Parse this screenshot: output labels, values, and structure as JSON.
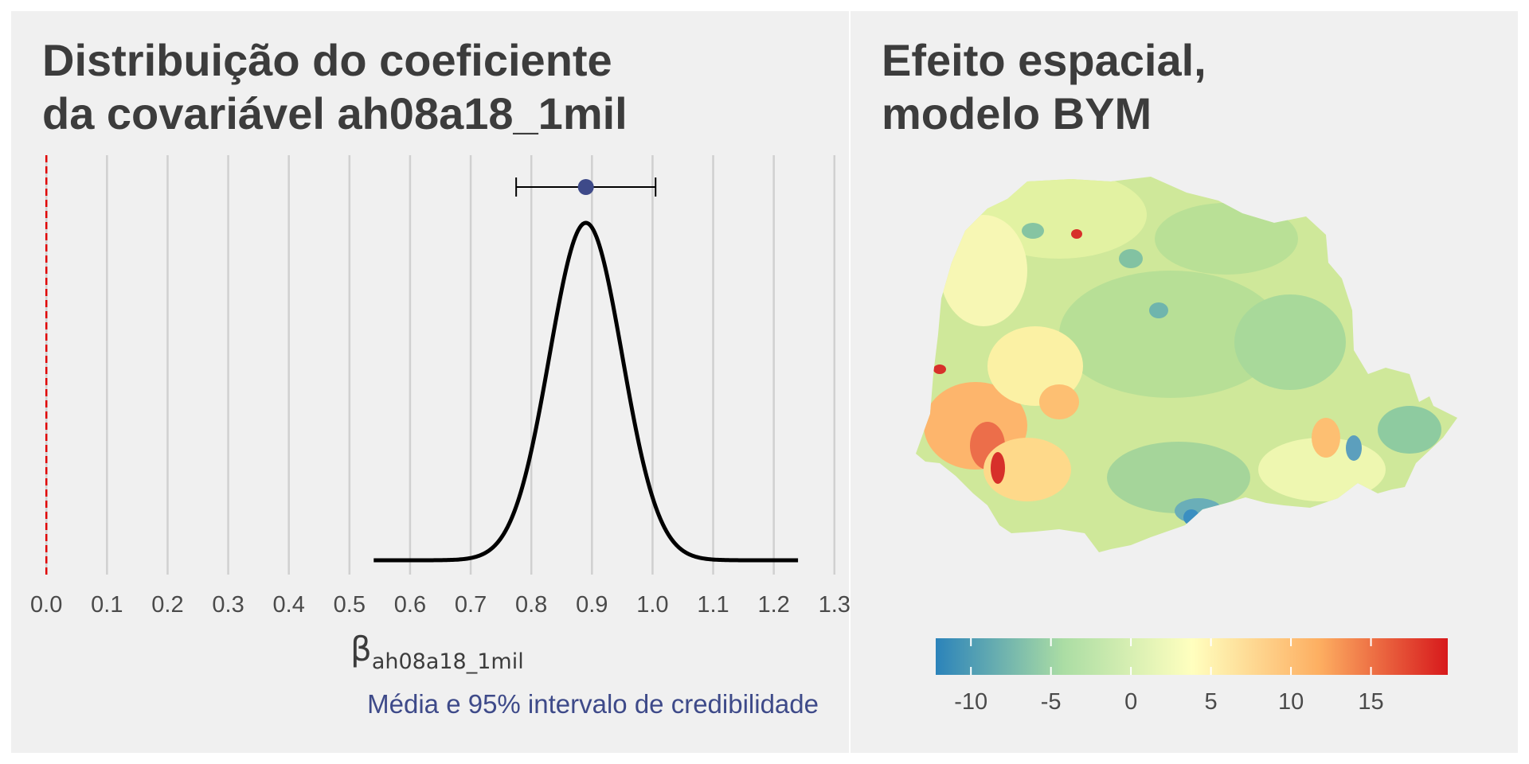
{
  "colors": {
    "panel_bg": "#f0f0f0",
    "outer_bg": "#ffffff",
    "gridline": "#d0d0d0",
    "zero_line": "#e00000",
    "density_line": "#000000",
    "mean_point": "#3e4a89",
    "caption_text": "#3e4a89",
    "title_text": "#3c3c3c"
  },
  "chart_data": [
    {
      "type": "line",
      "title_lines": [
        "Distribuição do coeficiente",
        "da covariável ah08a18_1mil"
      ],
      "xlabel_symbol": "β",
      "xlabel_subscript": "ah08a18_1mil",
      "ylabel": "",
      "caption": "Média e 95% intervalo de credibilidade",
      "xlim": [
        -0.02,
        1.32
      ],
      "x_ticks": [
        0.0,
        0.1,
        0.2,
        0.3,
        0.4,
        0.5,
        0.6,
        0.7,
        0.8,
        0.9,
        1.0,
        1.1,
        1.2,
        1.3
      ],
      "x_tick_labels": [
        "0.0",
        "0.1",
        "0.2",
        "0.3",
        "0.4",
        "0.5",
        "0.6",
        "0.7",
        "0.8",
        "0.9",
        "1.0",
        "1.1",
        "1.2",
        "1.3"
      ],
      "grid": "vertical",
      "reference_line_x": 0.0,
      "density": {
        "x_range": [
          0.54,
          1.24
        ],
        "mean": 0.89,
        "sd": 0.06
      },
      "mean": 0.89,
      "ci95": [
        0.775,
        1.005
      ]
    },
    {
      "type": "heatmap",
      "title_lines": [
        "Efeito espacial,",
        "modelo BYM"
      ],
      "colorbar": {
        "range": [
          -12.2,
          19.8
        ],
        "ticks": [
          -10,
          -5,
          0,
          5,
          10,
          15
        ],
        "tick_labels": [
          "-10",
          "-5",
          "0",
          "5",
          "10",
          "15"
        ],
        "stops": [
          "#2b83ba",
          "#abdda4",
          "#ffffbf",
          "#fdae61",
          "#d7191c"
        ],
        "position": "bottom"
      }
    }
  ]
}
